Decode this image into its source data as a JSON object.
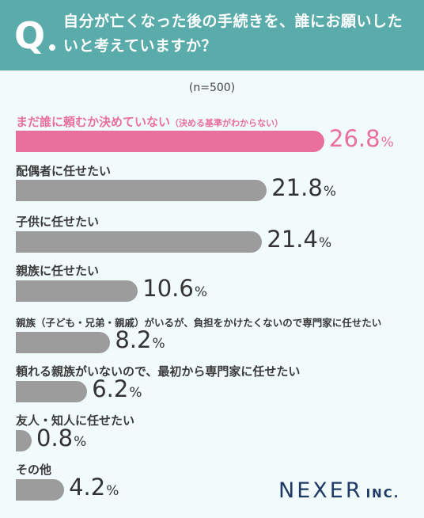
{
  "header": {
    "q_mark": "Q",
    "question": "自分が亡くなった後の手続きを、誰にお願いしたいと考えていますか？"
  },
  "sample_note": "(n=500)",
  "colors": {
    "header_bg": "#5aacab",
    "highlight": "#e8709a",
    "bar": "#9c9c9c",
    "background": "#f1fbfb"
  },
  "chart_data": {
    "type": "bar",
    "orientation": "horizontal",
    "unit": "%",
    "categories": [
      "まだ誰に頼むか決めていない",
      "配偶者に任せたい",
      "子供に任せたい",
      "親族に任せたい",
      "親族（子ども・兄弟・親戚）がいるが、負担をかけたくないので専門家に任せたい",
      "頼れる親族がいないので、最初から専門家に任せたい",
      "友人・知人に任せたい",
      "その他"
    ],
    "category_notes": [
      "（決める基準がわからない）",
      "",
      "",
      "",
      "",
      "",
      "",
      ""
    ],
    "values": [
      26.8,
      21.8,
      21.4,
      10.6,
      8.2,
      6.2,
      0.8,
      4.2
    ],
    "value_labels": [
      "26.8",
      "21.8",
      "21.4",
      "10.6",
      "8.2",
      "6.2",
      "0.8",
      "4.2"
    ],
    "highlight_index": 0
  },
  "logo": {
    "main": "NEXER",
    "sub": "INC."
  }
}
